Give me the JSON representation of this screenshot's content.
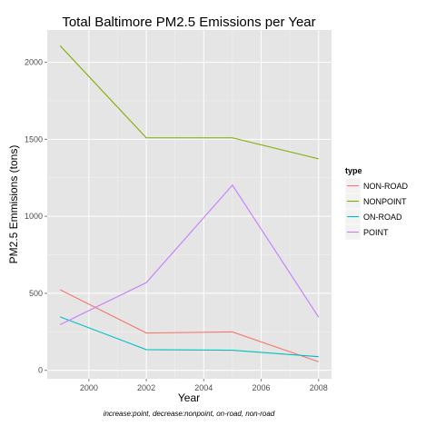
{
  "chart_data": {
    "type": "line",
    "title": "Total Baltimore PM2.5 Emissions per Year",
    "xlabel": "Year",
    "ylabel": "PM2.5 Emmisions (tons)",
    "caption": "increase:point, decrease:nonpoint, on-road, non-road",
    "x": [
      1999,
      2002,
      2005,
      2008
    ],
    "x_ticks": [
      2000,
      2002,
      2004,
      2006,
      2008
    ],
    "y_ticks": [
      0,
      500,
      1000,
      1500,
      2000
    ],
    "xlim": [
      1998.55,
      2008.45
    ],
    "ylim": [
      -55,
      2210
    ],
    "grid": true,
    "legend": {
      "title": "type",
      "placement": "right"
    },
    "series": [
      {
        "name": "NON-ROAD",
        "color": "#F8766D",
        "values": [
          522.94,
          242.55,
          248.93,
          55.82
        ]
      },
      {
        "name": "NONPOINT",
        "color": "#7CAE00",
        "values": [
          2107.63,
          1509.5,
          1509.5,
          1373.21
        ]
      },
      {
        "name": "ON-ROAD",
        "color": "#00BFC4",
        "values": [
          346.82,
          134.31,
          130.43,
          88.28
        ]
      },
      {
        "name": "POINT",
        "color": "#C77CFF",
        "values": [
          296.8,
          569.26,
          1202.49,
          344.98
        ]
      }
    ]
  }
}
